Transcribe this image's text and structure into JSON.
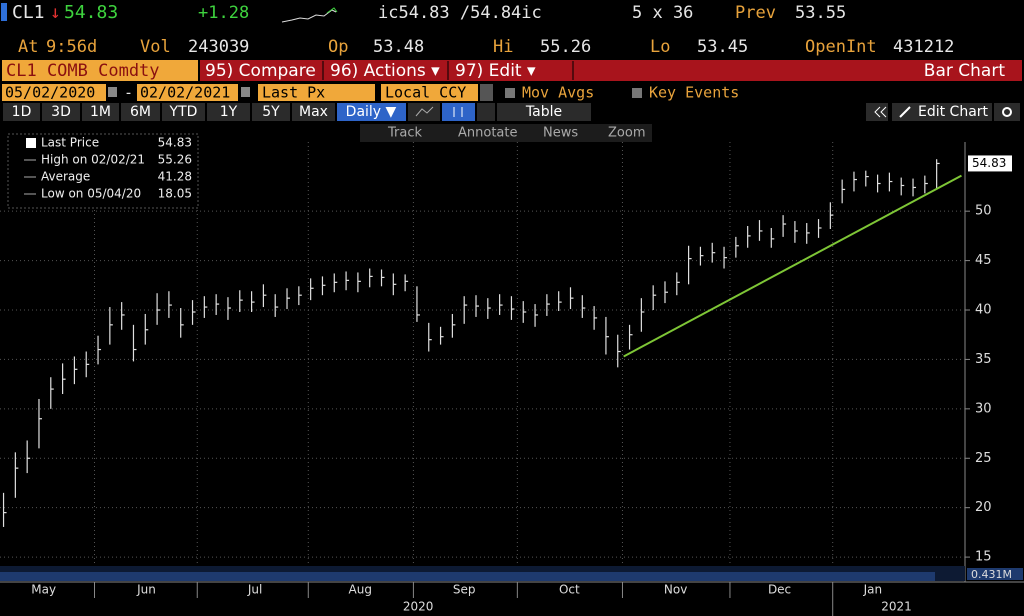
{
  "header": {
    "ticker": "CL1",
    "arrow": "↓",
    "last": "54.83",
    "change": "+1.28",
    "bid_ask": "ic54.83 /54.84ic",
    "size": "5 x 36",
    "prev_label": "Prev",
    "prev": "53.55",
    "at_label": "At",
    "time": "9:56d",
    "vol_label": "Vol",
    "vol": "243039",
    "op_label": "Op",
    "open": "53.48",
    "hi_label": "Hi",
    "high": "55.26",
    "lo_label": "Lo",
    "low": "53.45",
    "oi_label": "OpenInt",
    "oi": "431212"
  },
  "toolbar": {
    "security": "CL1 COMB Comdty",
    "menus": [
      "95) Compare",
      "96) Actions ▾",
      "97) Edit ▾"
    ],
    "title": "Bar Chart"
  },
  "settings": {
    "start_date": "05/02/2020",
    "separator": "-",
    "end_date": "02/02/2021",
    "field": "Last Px",
    "currency": "Local CCY",
    "options": [
      "Mov Avgs",
      "Key Events"
    ]
  },
  "periods": {
    "buttons": [
      "1D",
      "3D",
      "1M",
      "6M",
      "YTD",
      "1Y",
      "5Y",
      "Max"
    ],
    "frequency": "Daily ▼",
    "table": "Table",
    "edit_chart": "Edit Chart"
  },
  "chart_tools": [
    "Track",
    "Annotate",
    "News",
    "Zoom"
  ],
  "chart_data": {
    "type": "ohlc",
    "color": "#e0e0e0",
    "legend": [
      {
        "label": "Last Price",
        "value": 54.83
      },
      {
        "label": "High on 02/02/21",
        "value": 55.26
      },
      {
        "label": "Average",
        "value": 41.28
      },
      {
        "label": "Low on 05/04/20",
        "value": 18.05
      }
    ],
    "categories": [
      null,
      null,
      null,
      null,
      null,
      null,
      null,
      null,
      null,
      null,
      null,
      null,
      null,
      null,
      null,
      null,
      null,
      null,
      null,
      null,
      null,
      null,
      null,
      null,
      null,
      null,
      null,
      null,
      null,
      null,
      null,
      null,
      null,
      null,
      null,
      null,
      null,
      null,
      null,
      null,
      null,
      null,
      null,
      null,
      null,
      null,
      null,
      null,
      null,
      null,
      null,
      null,
      null,
      null,
      null,
      null,
      null,
      null,
      null,
      null,
      null,
      null,
      null,
      null,
      null,
      null,
      null,
      null,
      null,
      null,
      null,
      null,
      null,
      null,
      null,
      null,
      null,
      null,
      null,
      null
    ],
    "close": [
      19.5,
      24,
      25,
      29,
      32,
      33,
      34,
      34.5,
      36,
      38.5,
      39.5,
      36,
      38,
      40,
      40.5,
      38.5,
      39.8,
      40.3,
      40.6,
      40.2,
      41,
      40.8,
      41.5,
      40.3,
      41.2,
      41.5,
      42.2,
      42.5,
      42.8,
      43,
      42.9,
      43.4,
      43.3,
      42.6,
      42.9,
      39.5,
      37,
      37.3,
      38.5,
      40.5,
      40.4,
      40.2,
      40.5,
      40.1,
      39.8,
      39.5,
      40.6,
      40.8,
      41.2,
      40.2,
      39.2,
      37.3,
      35.8,
      37.5,
      39.8,
      41.5,
      41.8,
      42.8,
      45.2,
      45.5,
      45.8,
      45.3,
      46.5,
      47.5,
      48,
      47.2,
      48.7,
      48,
      47.8,
      48.3,
      49.6,
      52.2,
      53.2,
      53.5,
      52.8,
      53,
      52.6,
      52.4,
      52.8,
      54.83
    ],
    "high": [
      21.5,
      25.6,
      26.8,
      31,
      33.2,
      34.6,
      35.3,
      35.8,
      37.4,
      40.3,
      40.8,
      38.5,
      39.6,
      41.7,
      41.9,
      40.2,
      41,
      41.4,
      41.6,
      41.3,
      42,
      41.9,
      42.6,
      41.6,
      42.2,
      42.4,
      43.2,
      43.4,
      43.7,
      43.9,
      43.8,
      44.2,
      44.1,
      43.7,
      43.6,
      42.4,
      38.7,
      38.3,
      39.6,
      41.4,
      41.5,
      41.2,
      41.6,
      41.4,
      40.9,
      40.6,
      41.6,
      41.9,
      42.3,
      41.5,
      40.4,
      39.3,
      37.5,
      38.5,
      41.2,
      42.5,
      42.9,
      43.8,
      46.5,
      46.4,
      46.8,
      46.4,
      47.4,
      48.5,
      49.1,
      48.3,
      49.6,
      49,
      48.8,
      49.2,
      50.9,
      53.2,
      54,
      54.1,
      53.7,
      53.9,
      53.4,
      53.3,
      53.6,
      55.26
    ],
    "low": [
      18.05,
      21,
      23.5,
      26,
      30,
      31.5,
      32.5,
      33.2,
      34.5,
      36.5,
      38,
      34.8,
      36.5,
      38.5,
      39.2,
      37.2,
      38.5,
      39.2,
      39.5,
      39,
      39.8,
      39.8,
      40.3,
      39.3,
      40.1,
      40.5,
      41,
      41.5,
      41.8,
      42,
      41.8,
      42.3,
      42.4,
      41.5,
      41.9,
      38.8,
      35.8,
      36.5,
      37.2,
      38.6,
      39.3,
      39.1,
      39.5,
      39,
      38.7,
      38.3,
      39.4,
      39.9,
      40.1,
      39.2,
      38,
      35.5,
      34.2,
      36,
      37.8,
      40,
      40.7,
      41.5,
      42.6,
      44.5,
      44.8,
      44.2,
      45.3,
      46.3,
      47,
      46.3,
      47.4,
      46.8,
      46.7,
      47.3,
      48.2,
      50.8,
      52,
      52.5,
      51.9,
      52,
      51.6,
      51.5,
      51.8,
      52.3
    ],
    "trendline": {
      "color": "#7ec636",
      "x": [
        52.5,
        81.1
      ],
      "y": [
        35.3,
        53.6
      ]
    },
    "xlim": [
      -0.3,
      81.4
    ],
    "ylim": [
      14.2,
      57
    ],
    "yticks": [
      15,
      20,
      25,
      30,
      35,
      40,
      45,
      50
    ],
    "grid": true,
    "xgrid": [
      7.7,
      16.4,
      25.8,
      34.7,
      43.5,
      52.4,
      61.5,
      70.2
    ],
    "xticks": [
      {
        "value": 3.4,
        "label": "May"
      },
      {
        "value": 12.1,
        "label": "Jun"
      },
      {
        "value": 21.3,
        "label": "Jul"
      },
      {
        "value": 30.2,
        "label": "Aug"
      },
      {
        "value": 39,
        "label": "Sep"
      },
      {
        "value": 47.9,
        "label": "Oct"
      },
      {
        "value": 56.9,
        "label": "Nov"
      },
      {
        "value": 65.7,
        "label": "Dec"
      },
      {
        "value": 73.6,
        "label": "Jan"
      }
    ],
    "year_labels": [
      {
        "value": 35.1,
        "label": "2020"
      },
      {
        "value": 75.6,
        "label": "2021"
      }
    ],
    "volume_label": "0.431M"
  }
}
